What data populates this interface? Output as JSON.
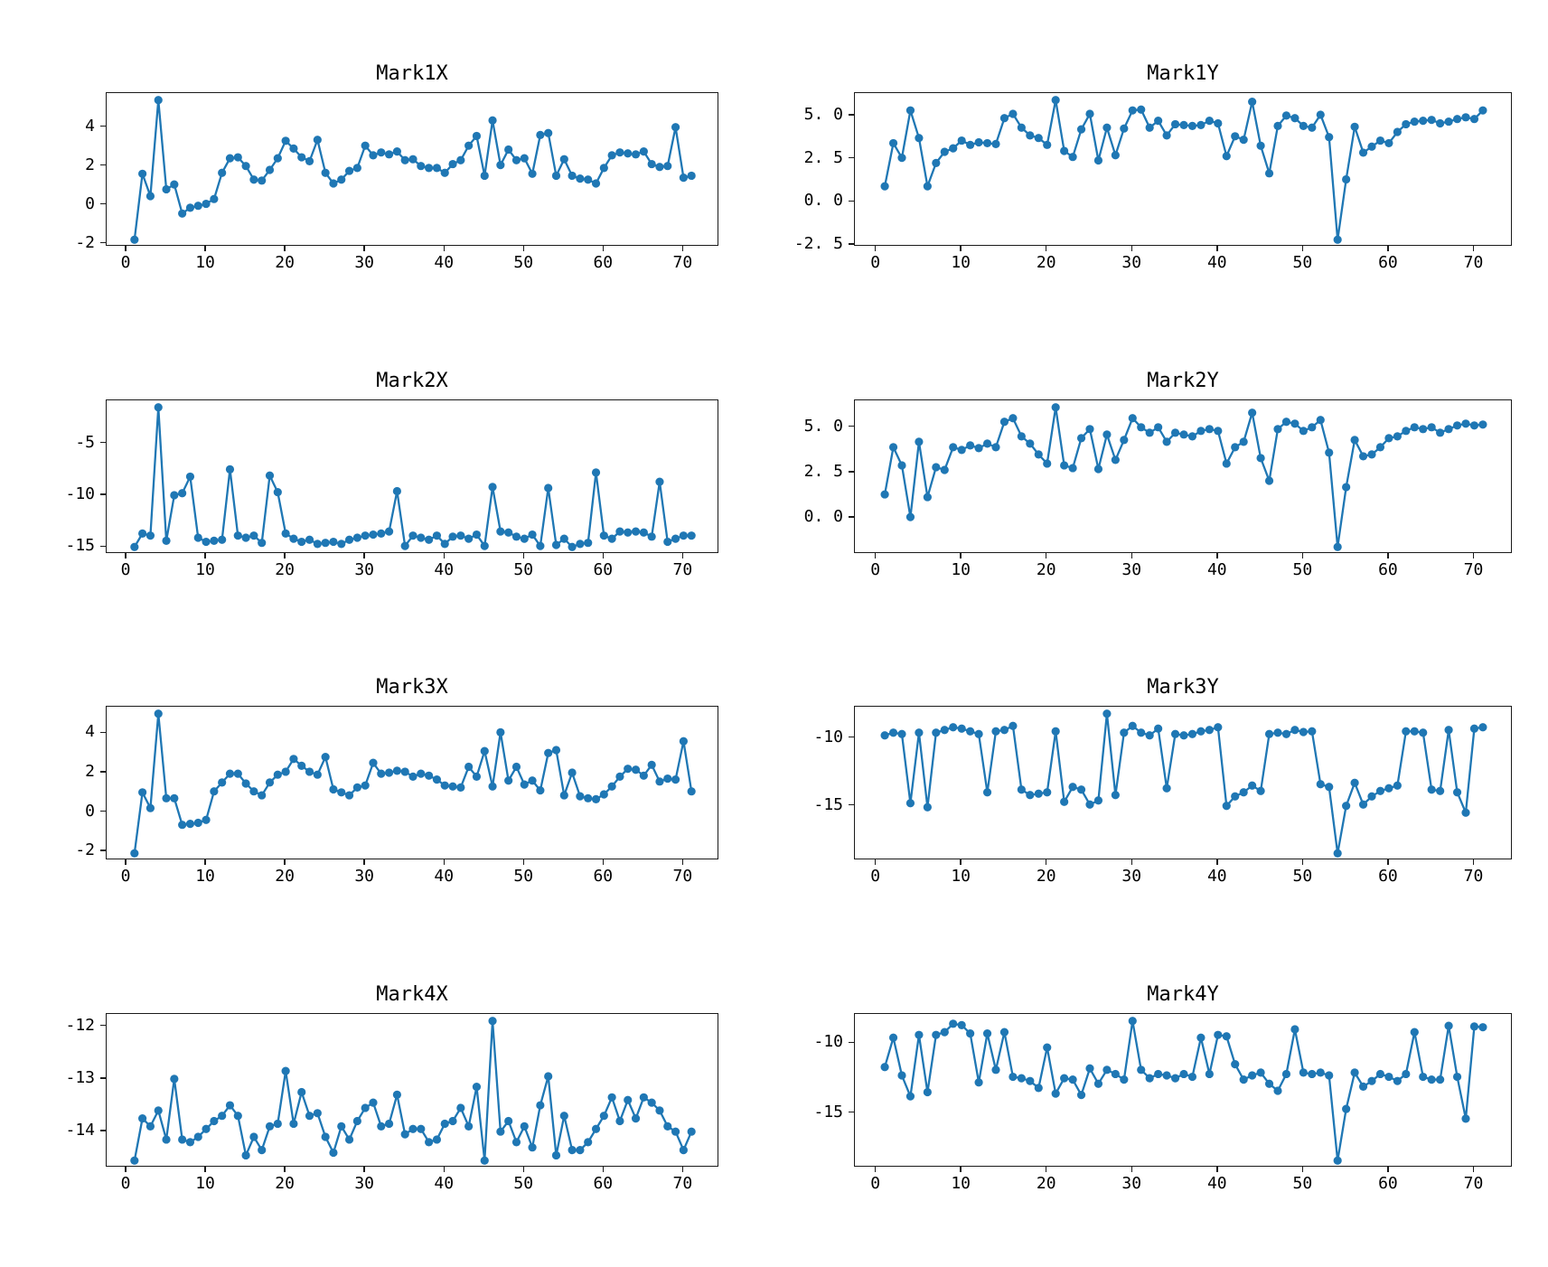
{
  "figure": {
    "background": "#ffffff",
    "line_color": "#1f77b4",
    "spine_color": "#1a1a1a",
    "marker": "circle"
  },
  "chart_data": [
    {
      "type": "line",
      "title": "Mark1X",
      "x_start": 1,
      "xlim": [
        -2.5,
        74.5
      ],
      "ylim": [
        -2.16,
        5.76
      ],
      "x_tick_labels": [
        "0",
        "10",
        "20",
        "30",
        "40",
        "50",
        "60",
        "70"
      ],
      "x_tick_values": [
        0,
        10,
        20,
        30,
        40,
        50,
        60,
        70
      ],
      "y_tick_labels": [
        "4",
        "2",
        "0",
        "-2"
      ],
      "y_tick_values": [
        4,
        2,
        0,
        -2
      ],
      "grid": false,
      "legend": null,
      "values": [
        -1.8,
        1.6,
        0.45,
        5.4,
        0.8,
        1.05,
        -0.45,
        -0.15,
        -0.05,
        0.05,
        0.3,
        1.65,
        2.4,
        2.45,
        2.0,
        1.3,
        1.25,
        1.8,
        2.4,
        3.3,
        2.9,
        2.45,
        2.25,
        3.35,
        1.65,
        1.1,
        1.3,
        1.75,
        1.9,
        3.05,
        2.55,
        2.7,
        2.6,
        2.75,
        2.3,
        2.35,
        2.0,
        1.9,
        1.9,
        1.65,
        2.1,
        2.3,
        3.05,
        3.55,
        1.5,
        4.35,
        2.05,
        2.85,
        2.3,
        2.4,
        1.6,
        3.6,
        3.7,
        1.5,
        2.35,
        1.5,
        1.35,
        1.3,
        1.1,
        1.9,
        2.55,
        2.7,
        2.65,
        2.6,
        2.75,
        2.1,
        1.95,
        2.0,
        4.0,
        1.4,
        1.5
      ]
    },
    {
      "type": "line",
      "title": "Mark1Y",
      "x_start": 1,
      "xlim": [
        -2.5,
        74.5
      ],
      "ylim": [
        -2.605,
        6.305
      ],
      "x_tick_labels": [
        "0",
        "10",
        "20",
        "30",
        "40",
        "50",
        "60",
        "70"
      ],
      "x_tick_values": [
        0,
        10,
        20,
        30,
        40,
        50,
        60,
        70
      ],
      "y_tick_labels": [
        "5. 0",
        "2. 5",
        "0. 0",
        "-2. 5"
      ],
      "y_tick_values": [
        5.0,
        2.5,
        0.0,
        -2.5
      ],
      "grid": false,
      "legend": null,
      "values": [
        0.9,
        3.4,
        2.55,
        5.3,
        3.7,
        0.9,
        2.25,
        2.9,
        3.1,
        3.55,
        3.3,
        3.45,
        3.4,
        3.35,
        4.85,
        5.1,
        4.3,
        3.85,
        3.7,
        3.3,
        5.9,
        2.95,
        2.6,
        4.2,
        5.1,
        2.4,
        4.3,
        2.7,
        4.25,
        5.3,
        5.35,
        4.3,
        4.7,
        3.85,
        4.5,
        4.45,
        4.4,
        4.45,
        4.7,
        4.55,
        2.65,
        3.8,
        3.6,
        5.8,
        3.25,
        1.65,
        4.4,
        5.0,
        4.85,
        4.4,
        4.3,
        5.05,
        3.75,
        -2.2,
        1.3,
        4.35,
        2.85,
        3.2,
        3.55,
        3.4,
        4.05,
        4.5,
        4.65,
        4.7,
        4.75,
        4.55,
        4.65,
        4.8,
        4.9,
        4.8,
        5.3
      ]
    },
    {
      "type": "line",
      "title": "Mark2X",
      "x_start": 1,
      "xlim": [
        -2.5,
        74.5
      ],
      "ylim": [
        -15.675,
        -0.825
      ],
      "x_tick_labels": [
        "0",
        "10",
        "20",
        "30",
        "40",
        "50",
        "60",
        "70"
      ],
      "x_tick_values": [
        0,
        10,
        20,
        30,
        40,
        50,
        60,
        70
      ],
      "y_tick_labels": [
        "-5",
        "-10",
        "-15"
      ],
      "y_tick_values": [
        -5,
        -10,
        -15
      ],
      "grid": false,
      "legend": null,
      "values": [
        -15.0,
        -13.7,
        -13.9,
        -1.5,
        -14.4,
        -10.0,
        -9.8,
        -8.2,
        -14.1,
        -14.5,
        -14.4,
        -14.3,
        -7.5,
        -13.9,
        -14.1,
        -13.9,
        -14.6,
        -8.1,
        -9.7,
        -13.7,
        -14.2,
        -14.5,
        -14.3,
        -14.7,
        -14.6,
        -14.5,
        -14.7,
        -14.3,
        -14.1,
        -13.9,
        -13.8,
        -13.7,
        -13.5,
        -9.6,
        -14.9,
        -13.9,
        -14.1,
        -14.3,
        -13.9,
        -14.7,
        -14.0,
        -13.9,
        -14.2,
        -13.8,
        -14.9,
        -9.2,
        -13.5,
        -13.6,
        -14.0,
        -14.2,
        -13.8,
        -14.9,
        -9.3,
        -14.8,
        -14.2,
        -15.0,
        -14.7,
        -14.6,
        -7.8,
        -13.9,
        -14.2,
        -13.5,
        -13.6,
        -13.5,
        -13.6,
        -14.0,
        -8.7,
        -14.5,
        -14.2,
        -13.9,
        -13.9
      ]
    },
    {
      "type": "line",
      "title": "Mark2Y",
      "x_start": 1,
      "xlim": [
        -2.5,
        74.5
      ],
      "ylim": [
        -1.985,
        6.485
      ],
      "x_tick_labels": [
        "0",
        "10",
        "20",
        "30",
        "40",
        "50",
        "60",
        "70"
      ],
      "x_tick_values": [
        0,
        10,
        20,
        30,
        40,
        50,
        60,
        70
      ],
      "y_tick_labels": [
        "5. 0",
        "2. 5",
        "0. 0"
      ],
      "y_tick_values": [
        5.0,
        2.5,
        0.0
      ],
      "grid": false,
      "legend": null,
      "values": [
        1.3,
        3.9,
        2.9,
        0.05,
        4.2,
        1.15,
        2.8,
        2.65,
        3.9,
        3.75,
        4.0,
        3.85,
        4.1,
        3.9,
        5.3,
        5.5,
        4.5,
        4.1,
        3.5,
        3.0,
        6.1,
        2.9,
        2.75,
        4.4,
        4.9,
        2.7,
        4.6,
        3.2,
        4.3,
        5.5,
        5.0,
        4.7,
        5.0,
        4.2,
        4.7,
        4.6,
        4.5,
        4.8,
        4.9,
        4.8,
        3.0,
        3.9,
        4.2,
        5.8,
        3.3,
        2.05,
        4.9,
        5.3,
        5.2,
        4.8,
        5.0,
        5.4,
        3.6,
        -1.6,
        1.7,
        4.3,
        3.4,
        3.5,
        3.9,
        4.4,
        4.5,
        4.8,
        5.0,
        4.9,
        5.0,
        4.7,
        4.9,
        5.1,
        5.2,
        5.1,
        5.15
      ]
    },
    {
      "type": "line",
      "title": "Mark3X",
      "x_start": 1,
      "xlim": [
        -2.5,
        74.5
      ],
      "ylim": [
        -2.455,
        5.355
      ],
      "x_tick_labels": [
        "0",
        "10",
        "20",
        "30",
        "40",
        "50",
        "60",
        "70"
      ],
      "x_tick_values": [
        0,
        10,
        20,
        30,
        40,
        50,
        60,
        70
      ],
      "y_tick_labels": [
        "4",
        "2",
        "0",
        "-2"
      ],
      "y_tick_values": [
        4,
        2,
        0,
        -2
      ],
      "grid": false,
      "legend": null,
      "values": [
        -2.1,
        1.0,
        0.2,
        5.0,
        0.7,
        0.7,
        -0.65,
        -0.6,
        -0.55,
        -0.4,
        1.05,
        1.5,
        1.95,
        1.95,
        1.45,
        1.05,
        0.85,
        1.5,
        1.9,
        2.05,
        2.7,
        2.35,
        2.05,
        1.9,
        2.8,
        1.15,
        1.0,
        0.85,
        1.25,
        1.35,
        2.5,
        1.95,
        2.0,
        2.1,
        2.05,
        1.8,
        1.95,
        1.85,
        1.65,
        1.35,
        1.3,
        1.25,
        2.3,
        1.8,
        3.1,
        1.3,
        4.05,
        1.6,
        2.3,
        1.4,
        1.6,
        1.1,
        3.0,
        3.15,
        0.85,
        2.0,
        0.8,
        0.7,
        0.65,
        0.9,
        1.3,
        1.8,
        2.2,
        2.15,
        1.85,
        2.4,
        1.55,
        1.7,
        1.65,
        3.6,
        1.05
      ]
    },
    {
      "type": "line",
      "title": "Mark3Y",
      "x_start": 1,
      "xlim": [
        -2.5,
        74.5
      ],
      "ylim": [
        -19.015,
        -7.685
      ],
      "x_tick_labels": [
        "0",
        "10",
        "20",
        "30",
        "40",
        "50",
        "60",
        "70"
      ],
      "x_tick_values": [
        0,
        10,
        20,
        30,
        40,
        50,
        60,
        70
      ],
      "y_tick_labels": [
        "-10",
        "-15"
      ],
      "y_tick_values": [
        -10,
        -15
      ],
      "grid": false,
      "legend": null,
      "values": [
        -9.8,
        -9.6,
        -9.7,
        -14.8,
        -9.6,
        -15.1,
        -9.6,
        -9.4,
        -9.2,
        -9.3,
        -9.5,
        -9.7,
        -14.0,
        -9.5,
        -9.4,
        -9.1,
        -13.8,
        -14.2,
        -14.1,
        -14.0,
        -9.5,
        -14.7,
        -13.6,
        -13.8,
        -14.9,
        -14.6,
        -8.2,
        -14.2,
        -9.6,
        -9.1,
        -9.6,
        -9.8,
        -9.3,
        -13.7,
        -9.7,
        -9.8,
        -9.7,
        -9.5,
        -9.4,
        -9.2,
        -15.0,
        -14.3,
        -14.0,
        -13.5,
        -13.9,
        -9.7,
        -9.6,
        -9.7,
        -9.4,
        -9.55,
        -9.5,
        -13.4,
        -13.6,
        -18.5,
        -15.0,
        -13.3,
        -14.9,
        -14.3,
        -13.9,
        -13.7,
        -13.5,
        -9.5,
        -9.5,
        -9.6,
        -13.8,
        -13.9,
        -9.4,
        -14.0,
        -15.5,
        -9.3,
        -9.2
      ]
    },
    {
      "type": "line",
      "title": "Mark4X",
      "x_start": 1,
      "xlim": [
        -2.5,
        74.5
      ],
      "ylim": [
        -14.6825,
        -11.7675
      ],
      "x_tick_labels": [
        "0",
        "10",
        "20",
        "30",
        "40",
        "50",
        "60",
        "70"
      ],
      "x_tick_values": [
        0,
        10,
        20,
        30,
        40,
        50,
        60,
        70
      ],
      "y_tick_labels": [
        "-12",
        "-13",
        "-14"
      ],
      "y_tick_values": [
        -12,
        -13,
        -14
      ],
      "grid": false,
      "legend": null,
      "values": [
        -14.55,
        -13.75,
        -13.9,
        -13.6,
        -14.15,
        -13.0,
        -14.15,
        -14.2,
        -14.1,
        -13.95,
        -13.8,
        -13.7,
        -13.5,
        -13.7,
        -14.45,
        -14.1,
        -14.35,
        -13.9,
        -13.85,
        -12.85,
        -13.85,
        -13.25,
        -13.7,
        -13.65,
        -14.1,
        -14.4,
        -13.9,
        -14.15,
        -13.8,
        -13.55,
        -13.45,
        -13.9,
        -13.85,
        -13.3,
        -14.05,
        -13.95,
        -13.95,
        -14.2,
        -14.15,
        -13.85,
        -13.8,
        -13.55,
        -13.9,
        -13.15,
        -14.55,
        -11.9,
        -14.0,
        -13.8,
        -14.2,
        -13.9,
        -14.3,
        -13.5,
        -12.95,
        -14.45,
        -13.7,
        -14.35,
        -14.35,
        -14.2,
        -13.95,
        -13.7,
        -13.35,
        -13.8,
        -13.4,
        -13.75,
        -13.35,
        -13.45,
        -13.6,
        -13.9,
        -14.0,
        -14.35,
        -14.0
      ]
    },
    {
      "type": "line",
      "title": "Mark4Y",
      "x_start": 1,
      "xlim": [
        -2.5,
        74.5
      ],
      "ylim": [
        -18.9,
        -7.9
      ],
      "x_tick_labels": [
        "0",
        "10",
        "20",
        "30",
        "40",
        "50",
        "60",
        "70"
      ],
      "x_tick_values": [
        0,
        10,
        20,
        30,
        40,
        50,
        60,
        70
      ],
      "y_tick_labels": [
        "-10",
        "-15"
      ],
      "y_tick_values": [
        -10,
        -15
      ],
      "grid": false,
      "legend": null,
      "values": [
        -11.7,
        -9.6,
        -12.3,
        -13.8,
        -9.4,
        -13.5,
        -9.4,
        -9.2,
        -8.6,
        -8.7,
        -9.3,
        -12.8,
        -9.3,
        -11.9,
        -9.2,
        -12.4,
        -12.5,
        -12.7,
        -13.2,
        -10.3,
        -13.6,
        -12.5,
        -12.6,
        -13.7,
        -11.8,
        -12.9,
        -11.9,
        -12.2,
        -12.6,
        -8.4,
        -11.9,
        -12.5,
        -12.2,
        -12.3,
        -12.5,
        -12.2,
        -12.4,
        -9.6,
        -12.2,
        -9.4,
        -9.5,
        -11.5,
        -12.6,
        -12.3,
        -12.1,
        -12.9,
        -13.4,
        -12.2,
        -9.0,
        -12.1,
        -12.2,
        -12.1,
        -12.3,
        -18.4,
        -14.7,
        -12.1,
        -13.1,
        -12.7,
        -12.2,
        -12.4,
        -12.7,
        -12.2,
        -9.2,
        -12.4,
        -12.6,
        -12.6,
        -8.75,
        -12.4,
        -15.4,
        -8.8,
        -8.85
      ]
    }
  ]
}
